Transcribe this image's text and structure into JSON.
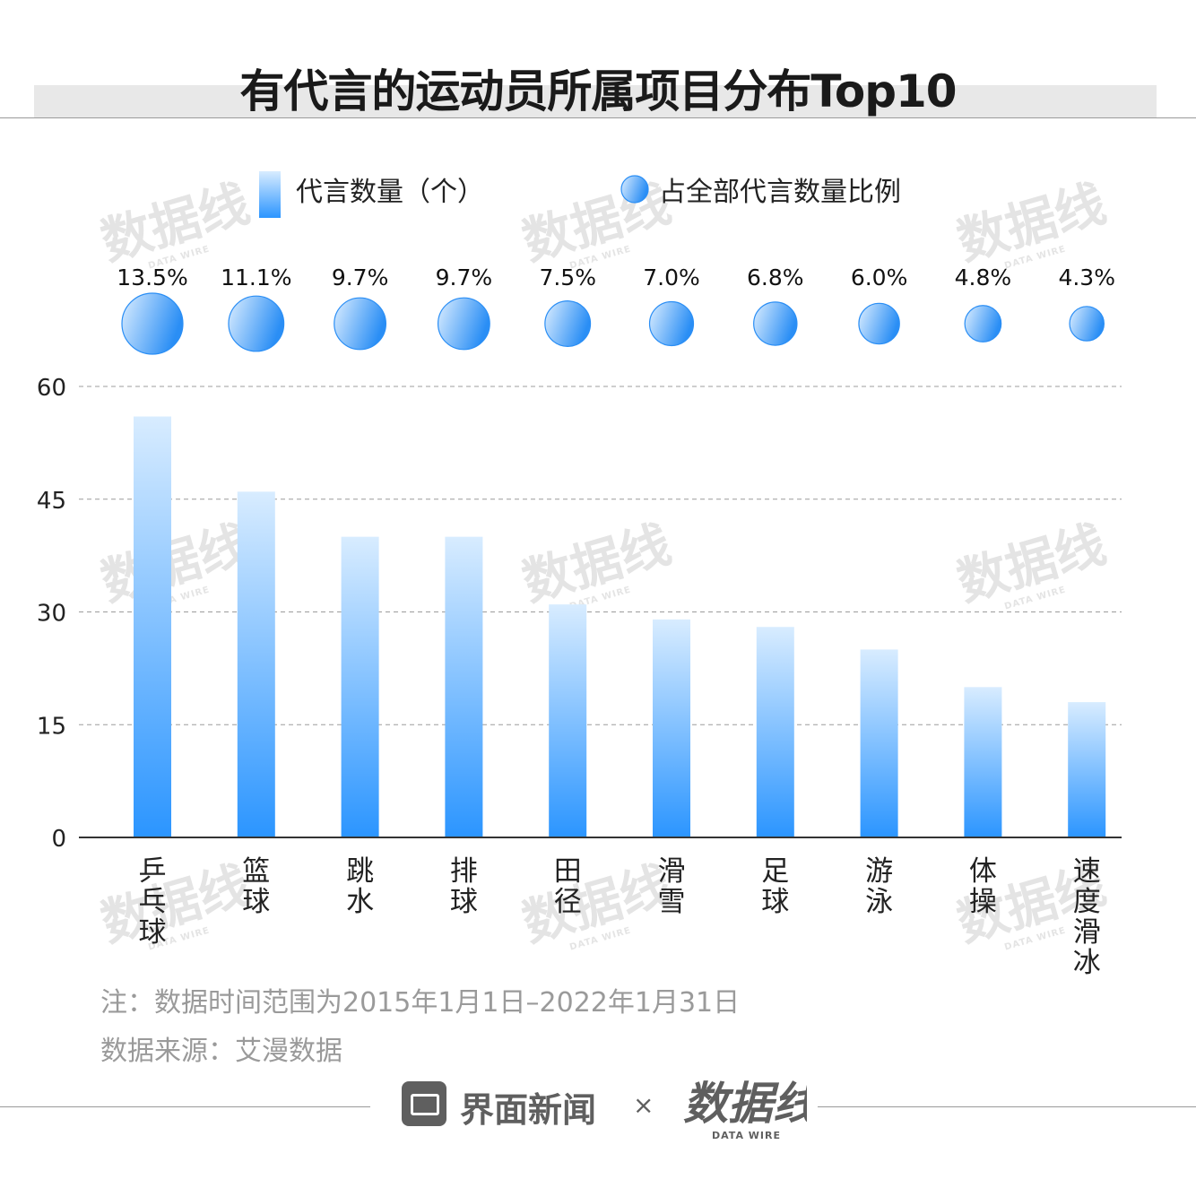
{
  "title": "有代言的运动员所属项目分布Top10",
  "legend": {
    "bar_label": "代言数量（个）",
    "circle_label": "占全部代言数量比例"
  },
  "chart_data": {
    "type": "bar",
    "categories": [
      "乒乓球",
      "篮球",
      "跳水",
      "排球",
      "田径",
      "滑雪",
      "足球",
      "游泳",
      "体操",
      "速度滑冰"
    ],
    "series": [
      {
        "name": "代言数量（个）",
        "values": [
          56,
          46,
          40,
          40,
          31,
          29,
          28,
          25,
          20,
          18
        ]
      },
      {
        "name": "占全部代言数量比例",
        "values": [
          13.5,
          11.1,
          9.7,
          9.7,
          7.5,
          7.0,
          6.8,
          6.0,
          4.8,
          4.3
        ],
        "labels": [
          "13.5%",
          "11.1%",
          "9.7%",
          "9.7%",
          "7.5%",
          "7.0%",
          "6.8%",
          "6.0%",
          "4.8%",
          "4.3%"
        ]
      }
    ],
    "yticks": [
      "0",
      "15",
      "30",
      "45",
      "60"
    ],
    "ylim": [
      0,
      60
    ],
    "grid": true,
    "legend_position": "top"
  },
  "notes": {
    "note": "注：数据时间范围为2015年1月1日–2022年1月31日",
    "source": "数据来源：艾漫数据"
  },
  "footer": {
    "brand_jiemian": "界面新闻",
    "times": "×",
    "brand_datawire": "数据线",
    "datawire_en": "DATA WIRE"
  },
  "colors": {
    "bar_top": "#d8ecff",
    "bar_bottom": "#2b95ff",
    "circle_light": "#ddeeff",
    "circle_dark": "#2a8ef5",
    "grid": "#9c9c9c",
    "axis": "#333333",
    "watermark": "#cfcfcf"
  }
}
